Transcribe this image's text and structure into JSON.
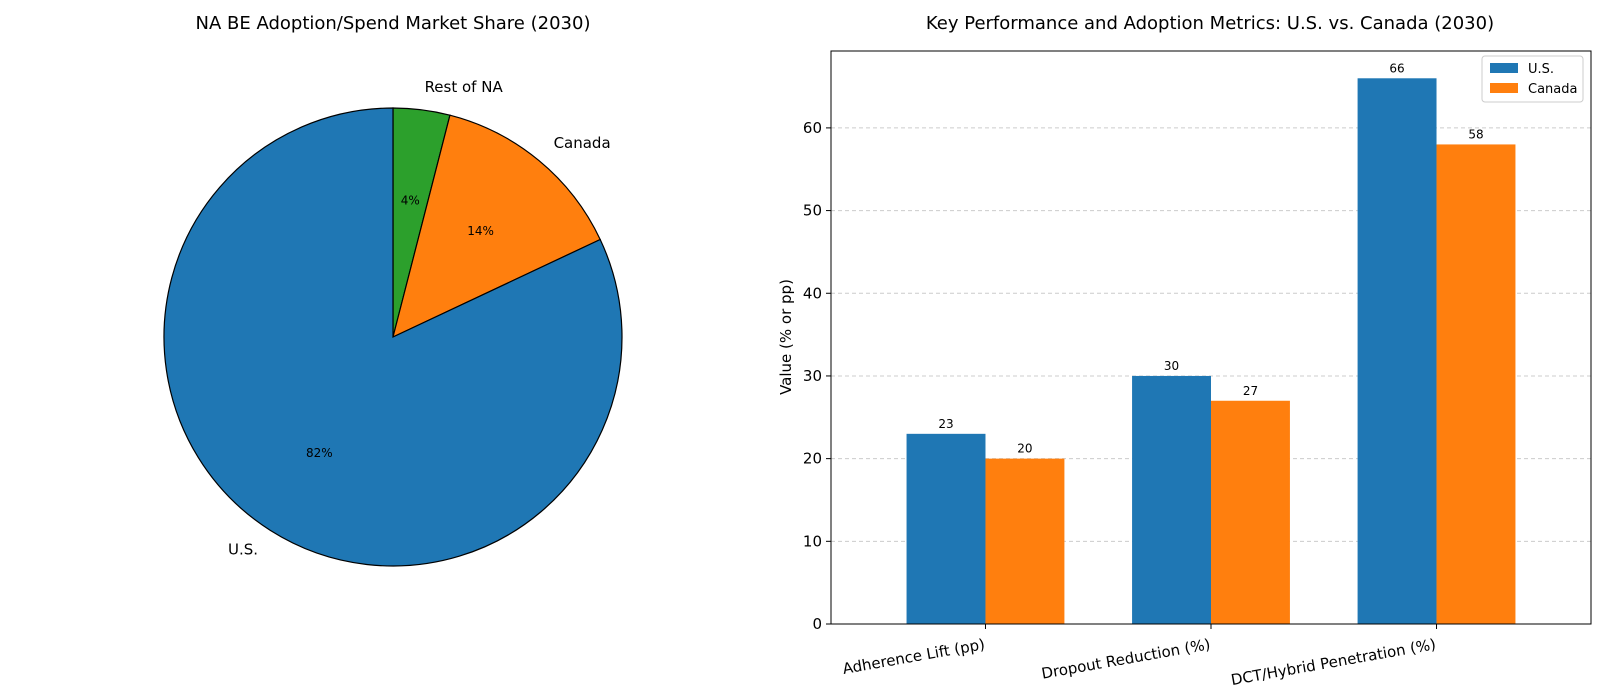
{
  "chart_data": [
    {
      "type": "pie",
      "title": "NA BE Adoption/Spend Market Share (2030)",
      "labels": [
        "Rest of NA",
        "Canada",
        "U.S."
      ],
      "values": [
        4,
        14,
        82
      ],
      "value_labels": [
        "4%",
        "14%",
        "82%"
      ],
      "colors": [
        "#2ca02c",
        "#ff7f0e",
        "#1f77b4"
      ],
      "start": "top",
      "direction": "clockwise"
    },
    {
      "type": "bar",
      "title": "Key Performance and Adoption Metrics: U.S. vs. Canada (2030)",
      "categories": [
        "Adherence Lift (pp)",
        "Dropout Reduction (%)",
        "DCT/Hybrid Penetration (%)"
      ],
      "series": [
        {
          "name": "U.S.",
          "values": [
            23,
            30,
            66
          ],
          "color": "#1f77b4"
        },
        {
          "name": "Canada",
          "values": [
            20,
            27,
            58
          ],
          "color": "#ff7f0e"
        }
      ],
      "xlabel": "",
      "ylabel": "Value (% or pp)",
      "ylim": [
        0,
        69.3
      ],
      "yticks": [
        0,
        10,
        20,
        30,
        40,
        50,
        60
      ],
      "grid": "y-dashed",
      "legend": "top-right"
    }
  ]
}
